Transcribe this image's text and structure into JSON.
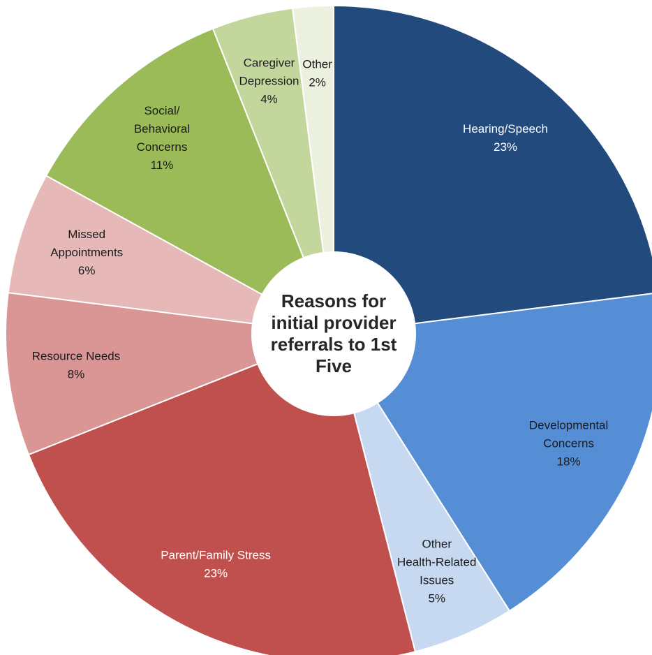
{
  "chart_data": {
    "type": "donut",
    "title": "Reasons for initial provider referrals to 1st Five",
    "categories": [
      [
        "Hearing/Speech"
      ],
      [
        "Developmental",
        "Concerns"
      ],
      [
        "Other",
        "Health-Related",
        "Issues"
      ],
      [
        "Parent/Family Stress"
      ],
      [
        "Resource Needs"
      ],
      [
        "Missed",
        "Appointments"
      ],
      [
        "Social/",
        "Behavioral",
        "Concerns"
      ],
      [
        "Caregiver",
        "Depression"
      ],
      [
        "Other"
      ]
    ],
    "values": [
      23,
      18,
      5,
      23,
      8,
      6,
      11,
      4,
      2
    ],
    "value_labels": [
      "23%",
      "18%",
      "5%",
      "23%",
      "8%",
      "6%",
      "11%",
      "4%",
      "2%"
    ],
    "colors": [
      "#234a7d",
      "#558ed5",
      "#c6d9f1",
      "#c0504d",
      "#d99694",
      "#e6b9b8",
      "#9bbb59",
      "#c3d69b",
      "#ebf1de"
    ],
    "label_colors": [
      "#ffffff",
      "#1a1a1a",
      "#1a1a1a",
      "#ffffff",
      "#1a1a1a",
      "#1a1a1a",
      "#1a1a1a",
      "#1a1a1a",
      "#1a1a1a"
    ]
  }
}
